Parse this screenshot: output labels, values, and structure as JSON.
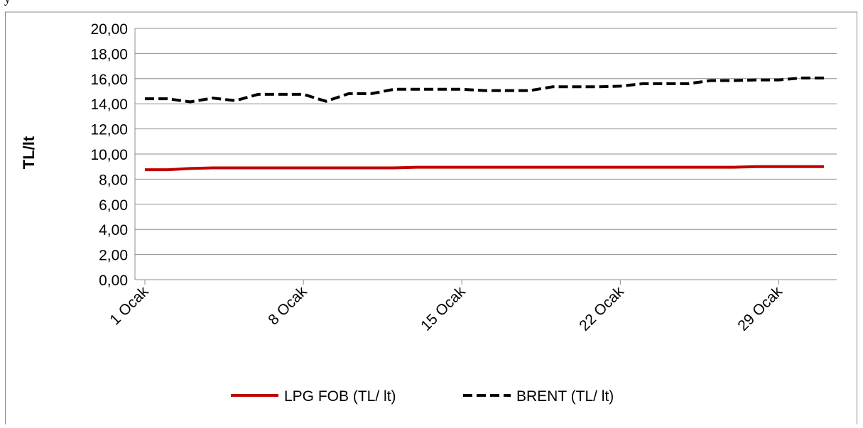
{
  "header": {
    "cut_text": "y"
  },
  "chart_data": {
    "type": "line",
    "title": "",
    "xlabel": "",
    "ylabel": "TL/lt",
    "ylim": [
      0,
      20
    ],
    "y_ticks": [
      "0,00",
      "2,00",
      "4,00",
      "6,00",
      "8,00",
      "10,00",
      "12,00",
      "14,00",
      "16,00",
      "18,00",
      "20,00"
    ],
    "categories": [
      "1 Ocak",
      "8 Ocak",
      "15 Ocak",
      "22 Ocak",
      "29 Ocak"
    ],
    "x_tick_days": [
      1,
      8,
      15,
      22,
      29
    ],
    "x_range_days": [
      1,
      31
    ],
    "grid": true,
    "legend_position": "bottom",
    "series": [
      {
        "name": "LPG FOB (TL/ lt)",
        "color": "#C00000",
        "style": "solid",
        "x": [
          1,
          2,
          3,
          4,
          5,
          6,
          7,
          8,
          9,
          10,
          11,
          12,
          13,
          14,
          15,
          16,
          17,
          18,
          19,
          20,
          21,
          22,
          23,
          24,
          25,
          26,
          27,
          28,
          29,
          30,
          31
        ],
        "values": [
          8.75,
          8.75,
          8.85,
          8.9,
          8.9,
          8.9,
          8.9,
          8.9,
          8.9,
          8.9,
          8.9,
          8.9,
          8.95,
          8.95,
          8.95,
          8.95,
          8.95,
          8.95,
          8.95,
          8.95,
          8.95,
          8.95,
          8.95,
          8.95,
          8.95,
          8.95,
          8.95,
          9.0,
          9.0,
          9.0,
          9.0
        ]
      },
      {
        "name": "BRENT (TL/ lt)",
        "color": "#000000",
        "style": "dashed",
        "x": [
          1,
          2,
          3,
          4,
          5,
          6,
          7,
          8,
          9,
          10,
          11,
          12,
          13,
          14,
          15,
          16,
          17,
          18,
          19,
          20,
          21,
          22,
          23,
          24,
          25,
          26,
          27,
          28,
          29,
          30,
          31
        ],
        "values": [
          14.4,
          14.4,
          14.15,
          14.45,
          14.25,
          14.75,
          14.75,
          14.75,
          14.2,
          14.8,
          14.8,
          15.15,
          15.15,
          15.15,
          15.15,
          15.05,
          15.05,
          15.05,
          15.35,
          15.35,
          15.35,
          15.4,
          15.6,
          15.6,
          15.6,
          15.85,
          15.85,
          15.9,
          15.9,
          16.05,
          16.05
        ]
      }
    ]
  }
}
